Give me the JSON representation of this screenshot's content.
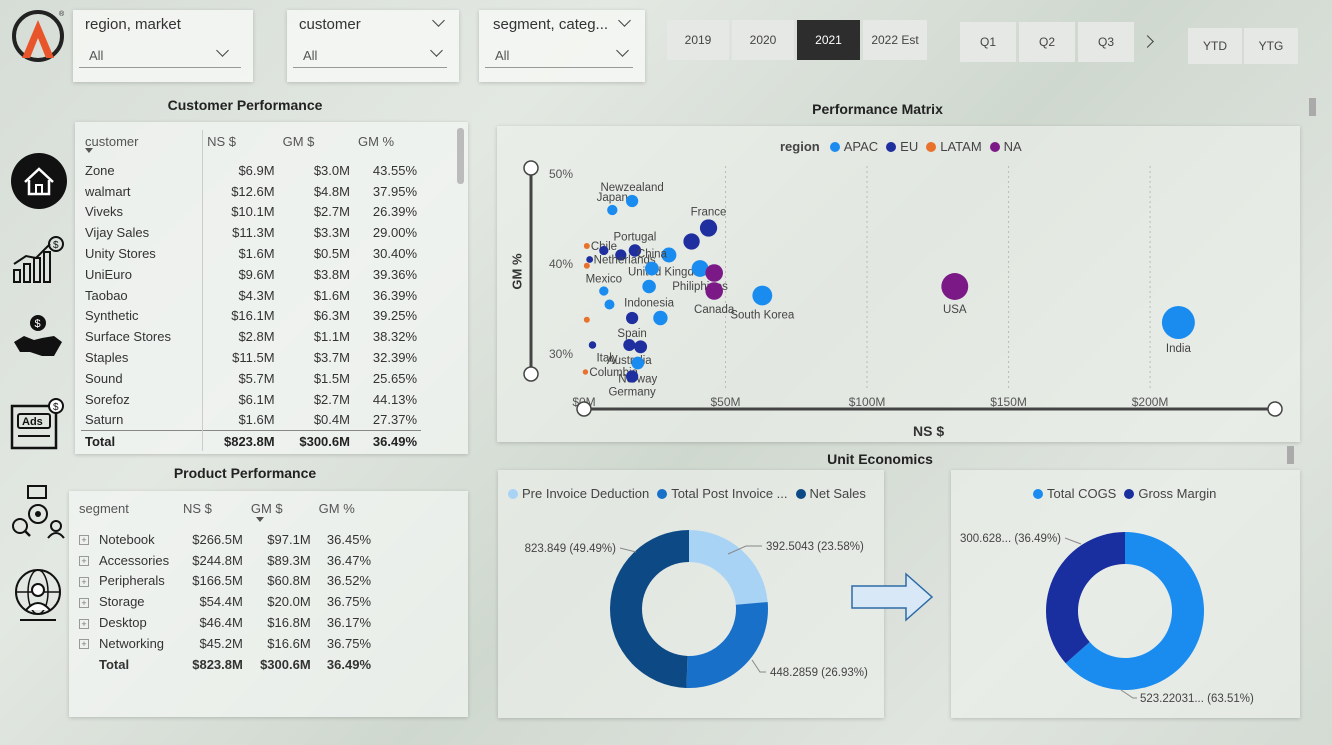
{
  "slicers": [
    {
      "label": "region, market",
      "value": "All"
    },
    {
      "label": "customer",
      "value": "All"
    },
    {
      "label": "segment, categ...",
      "value": "All"
    }
  ],
  "years": [
    "2019",
    "2020",
    "2021",
    "2022 Est"
  ],
  "selected_year": "2021",
  "quarters": [
    "Q1",
    "Q2",
    "Q3"
  ],
  "ytd": [
    "YTD",
    "YTG"
  ],
  "customer_perf": {
    "title": "Customer Performance",
    "headers": [
      "customer",
      "NS $",
      "GM $",
      "GM %"
    ],
    "rows": [
      [
        "Zone",
        "$6.9M",
        "$3.0M",
        "43.55%"
      ],
      [
        "walmart",
        "$12.6M",
        "$4.8M",
        "37.95%"
      ],
      [
        "Viveks",
        "$10.1M",
        "$2.7M",
        "26.39%"
      ],
      [
        "Vijay Sales",
        "$11.3M",
        "$3.3M",
        "29.00%"
      ],
      [
        "Unity Stores",
        "$1.6M",
        "$0.5M",
        "30.40%"
      ],
      [
        "UniEuro",
        "$9.6M",
        "$3.8M",
        "39.36%"
      ],
      [
        "Taobao",
        "$4.3M",
        "$1.6M",
        "36.39%"
      ],
      [
        "Synthetic",
        "$16.1M",
        "$6.3M",
        "39.25%"
      ],
      [
        "Surface Stores",
        "$2.8M",
        "$1.1M",
        "38.32%"
      ],
      [
        "Staples",
        "$11.5M",
        "$3.7M",
        "32.39%"
      ],
      [
        "Sound",
        "$5.7M",
        "$1.5M",
        "25.65%"
      ],
      [
        "Sorefoz",
        "$6.1M",
        "$2.7M",
        "44.13%"
      ],
      [
        "Saturn",
        "$1.6M",
        "$0.4M",
        "27.37%"
      ]
    ],
    "total": [
      "Total",
      "$823.8M",
      "$300.6M",
      "36.49%"
    ]
  },
  "product_perf": {
    "title": "Product Performance",
    "headers": [
      "segment",
      "NS $",
      "GM $",
      "GM %"
    ],
    "rows": [
      [
        "Notebook",
        "$266.5M",
        "$97.1M",
        "36.45%"
      ],
      [
        "Accessories",
        "$244.8M",
        "$89.3M",
        "36.47%"
      ],
      [
        "Peripherals",
        "$166.5M",
        "$60.8M",
        "36.52%"
      ],
      [
        "Storage",
        "$54.4M",
        "$20.0M",
        "36.75%"
      ],
      [
        "Desktop",
        "$46.4M",
        "$16.8M",
        "36.17%"
      ],
      [
        "Networking",
        "$45.2M",
        "$16.6M",
        "36.75%"
      ]
    ],
    "total": [
      "Total",
      "$823.8M",
      "$300.6M",
      "36.49%"
    ]
  },
  "matrix": {
    "title": "Performance Matrix",
    "legend_title": "region",
    "regions": [
      {
        "name": "APAC",
        "color": "#1a8cf0"
      },
      {
        "name": "EU",
        "color": "#1f2f9f"
      },
      {
        "name": "LATAM",
        "color": "#e8712c"
      },
      {
        "name": "NA",
        "color": "#7b1a86"
      }
    ],
    "y_label": "GM %",
    "x_label": "NS $",
    "y_ticks": [
      "50%",
      "40%",
      "30%"
    ],
    "x_ticks": [
      "$0M",
      "$50M",
      "$100M",
      "$150M",
      "$200M"
    ]
  },
  "chart_data": {
    "type": "scatter",
    "xlabel": "NS $",
    "ylabel": "GM %",
    "xlim": [
      0,
      230
    ],
    "ylim": [
      26,
      52
    ],
    "points": [
      {
        "label": "Japan",
        "region": "APAC",
        "x": 10,
        "y": 46
      },
      {
        "label": "Newzealand",
        "region": "APAC",
        "x": 17,
        "y": 47
      },
      {
        "label": "France",
        "region": "EU",
        "x": 44,
        "y": 44
      },
      {
        "label": "",
        "region": "EU",
        "x": 38,
        "y": 42.5
      },
      {
        "label": "Chile",
        "region": "LATAM",
        "x": 1,
        "y": 42
      },
      {
        "label": "Portugal",
        "region": "EU",
        "x": 18,
        "y": 41.5
      },
      {
        "label": "United Kingdom",
        "region": "APAC",
        "x": 30,
        "y": 41
      },
      {
        "label": "",
        "region": "EU",
        "x": 7,
        "y": 41.5
      },
      {
        "label": "",
        "region": "EU",
        "x": 13,
        "y": 41
      },
      {
        "label": "Netherlands",
        "region": "EU",
        "x": 2,
        "y": 40.5
      },
      {
        "label": "China",
        "region": "APAC",
        "x": 24,
        "y": 39.5
      },
      {
        "label": "Philiphines",
        "region": "APAC",
        "x": 41,
        "y": 39.5
      },
      {
        "label": "",
        "region": "NA",
        "x": 46,
        "y": 39
      },
      {
        "label": "",
        "region": "LATAM",
        "x": 1,
        "y": 39.8
      },
      {
        "label": "Indonesia",
        "region": "APAC",
        "x": 23,
        "y": 37.5
      },
      {
        "label": "Canada",
        "region": "NA",
        "x": 46,
        "y": 37
      },
      {
        "label": "Mexico",
        "region": "APAC",
        "x": 7,
        "y": 37
      },
      {
        "label": "South Korea",
        "region": "APAC",
        "x": 63,
        "y": 36.5
      },
      {
        "label": "USA",
        "region": "NA",
        "x": 131,
        "y": 37.5
      },
      {
        "label": "",
        "region": "APAC",
        "x": 9,
        "y": 35.5
      },
      {
        "label": "Spain",
        "region": "EU",
        "x": 17,
        "y": 34
      },
      {
        "label": "",
        "region": "APAC",
        "x": 27,
        "y": 34
      },
      {
        "label": "",
        "region": "LATAM",
        "x": 1,
        "y": 33.8
      },
      {
        "label": "India",
        "region": "APAC",
        "x": 210,
        "y": 33.5
      },
      {
        "label": "Italy",
        "region": "EU",
        "x": 3,
        "y": 31
      },
      {
        "label": "Australia",
        "region": "EU",
        "x": 16,
        "y": 31
      },
      {
        "label": "",
        "region": "EU",
        "x": 20,
        "y": 30.8
      },
      {
        "label": "Norway",
        "region": "APAC",
        "x": 19,
        "y": 29
      },
      {
        "label": "Columbia",
        "region": "LATAM",
        "x": 0.5,
        "y": 28
      },
      {
        "label": "Germany",
        "region": "EU",
        "x": 17,
        "y": 27.5
      }
    ]
  },
  "unit_econ": {
    "title": "Unit Economics",
    "donut1": {
      "legend": [
        {
          "name": "Pre Invoice Deduction",
          "color": "#a9d3f5"
        },
        {
          "name": "Total Post Invoice ...",
          "color": "#1870c8"
        },
        {
          "name": "Net Sales",
          "color": "#0d4a85"
        }
      ],
      "slices": [
        {
          "name": "Pre Invoice Deduction",
          "value": 392.5043,
          "pct": 23.58,
          "color": "#a9d3f5",
          "label": "392.5043 (23.58%)"
        },
        {
          "name": "Total Post Invoice ...",
          "value": 448.2859,
          "pct": 26.93,
          "color": "#1870c8",
          "label": "448.2859 (26.93%)"
        },
        {
          "name": "Net Sales",
          "value": 823.849,
          "pct": 49.49,
          "color": "#0d4a85",
          "label": "823.849 (49.49%)"
        }
      ]
    },
    "donut2": {
      "legend": [
        {
          "name": "Total COGS",
          "color": "#1a8cf0"
        },
        {
          "name": "Gross Margin",
          "color": "#1a2f9f"
        }
      ],
      "slices": [
        {
          "name": "Total COGS",
          "pct": 63.51,
          "color": "#1a8cf0",
          "label": "523.22031... (63.51%)"
        },
        {
          "name": "Gross Margin",
          "pct": 36.49,
          "color": "#1a2f9f",
          "label": "300.628... (36.49%)"
        }
      ]
    }
  }
}
